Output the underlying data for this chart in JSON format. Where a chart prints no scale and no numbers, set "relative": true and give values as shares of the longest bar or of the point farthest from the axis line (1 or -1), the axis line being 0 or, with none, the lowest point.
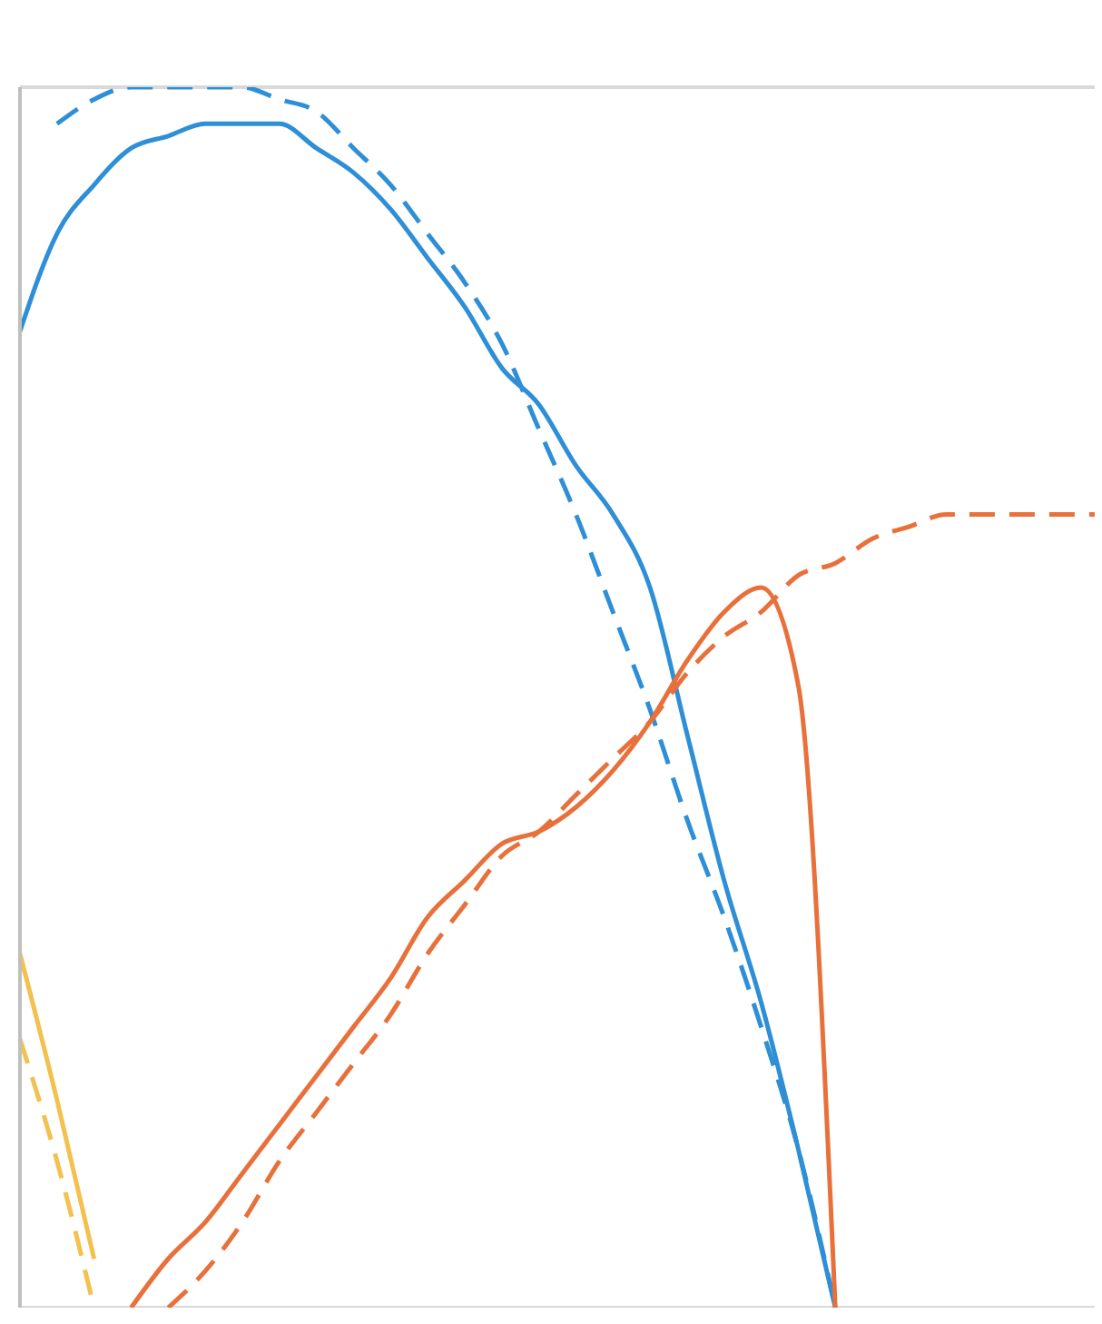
{
  "chart_data": {
    "type": "line",
    "relative": true,
    "grid": "y",
    "tick_labels": false,
    "marker": "none",
    "categories": [
      null,
      null,
      null,
      null,
      null,
      null,
      null,
      null,
      null,
      null,
      null,
      null,
      null,
      null,
      null,
      null,
      null,
      null,
      null,
      null,
      null,
      null,
      null,
      null,
      null,
      null,
      null,
      null,
      null,
      null
    ],
    "series": [
      {
        "color": "#2e8fd6",
        "line_style": "solid",
        "values": [
          0.8,
          0.88,
          0.92,
          0.95,
          0.96,
          0.97,
          0.97,
          0.97,
          0.95,
          0.93,
          0.9,
          0.86,
          0.82,
          0.77,
          0.74,
          0.69,
          0.65,
          0.59,
          0.47,
          0.35,
          0.25,
          0.13,
          0,
          null,
          null,
          null,
          null,
          null,
          null,
          null
        ]
      },
      {
        "color": "#2e8fd6",
        "line_style": "dashed",
        "values": [
          null,
          0.97,
          0.99,
          1.0,
          1.0,
          1.0,
          1.0,
          0.99,
          0.98,
          0.95,
          0.92,
          0.88,
          0.84,
          0.79,
          0.72,
          0.65,
          0.57,
          0.49,
          0.4,
          0.32,
          0.23,
          0.13,
          0,
          null,
          null,
          null,
          null,
          null,
          null,
          null
        ]
      },
      {
        "color": "#e8703a",
        "line_style": "solid",
        "values": [
          null,
          null,
          null,
          0,
          0.04,
          0.07,
          0.11,
          0.15,
          0.19,
          0.23,
          0.27,
          0.32,
          0.35,
          0.38,
          0.39,
          0.41,
          0.44,
          0.48,
          0.53,
          0.57,
          0.59,
          0.51,
          0,
          null,
          null,
          null,
          null,
          null,
          null,
          null
        ]
      },
      {
        "color": "#e8703a",
        "line_style": "dashed",
        "values": [
          null,
          null,
          null,
          null,
          0,
          0.03,
          0.07,
          0.12,
          0.16,
          0.2,
          0.24,
          0.29,
          0.33,
          0.37,
          0.39,
          0.42,
          0.45,
          0.48,
          0.52,
          0.55,
          0.57,
          0.6,
          0.61,
          0.63,
          0.64,
          0.65,
          0.65,
          0.65,
          0.65,
          0.65
        ]
      },
      {
        "color": "#f2c14e",
        "line_style": "solid",
        "values": [
          0.29,
          0.17,
          0.04,
          null,
          null,
          null,
          null,
          null,
          null,
          null,
          null,
          null,
          null,
          null,
          null,
          null,
          null,
          null,
          null,
          null,
          null,
          null,
          null,
          null,
          null,
          null,
          null,
          null,
          null,
          null
        ]
      },
      {
        "color": "#f2c14e",
        "line_style": "dashed",
        "values": [
          0.22,
          0.12,
          0,
          null,
          null,
          null,
          null,
          null,
          null,
          null,
          null,
          null,
          null,
          null,
          null,
          null,
          null,
          null,
          null,
          null,
          null,
          null,
          null,
          null,
          null,
          null,
          null,
          null,
          null,
          null
        ]
      }
    ]
  }
}
